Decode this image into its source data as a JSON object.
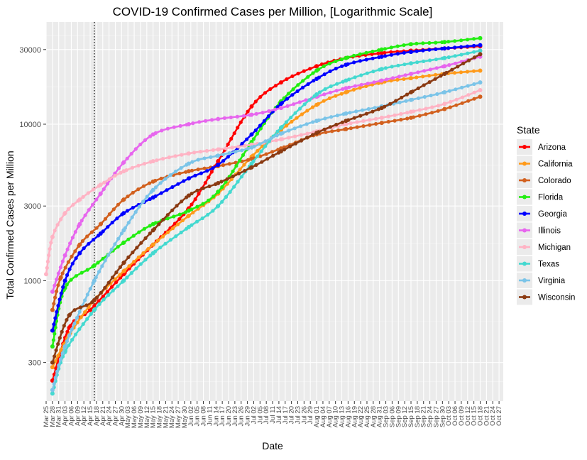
{
  "chart_data": {
    "type": "line",
    "title": "COVID-19 Confirmed Cases per Million, [Logarithmic Scale]",
    "xlabel": "Date",
    "ylabel": "Total Confirmed Cases per Million",
    "y_scale": "log10",
    "ylim": [
      170,
      45000
    ],
    "y_ticks": [
      300,
      1000,
      3000,
      10000,
      30000
    ],
    "y_tick_labels": [
      "300",
      "1000",
      "3000",
      "10000",
      "30000"
    ],
    "x_range": [
      "2020-03-25",
      "2020-10-29"
    ],
    "x_tick_labels": [
      "Mar 25",
      "Mar 28",
      "Mar 31",
      "Apr 03",
      "Apr 06",
      "Apr 09",
      "Apr 12",
      "Apr 15",
      "Apr 18",
      "Apr 21",
      "Apr 24",
      "Apr 27",
      "Apr 30",
      "May 03",
      "May 06",
      "May 09",
      "May 12",
      "May 15",
      "May 18",
      "May 21",
      "May 24",
      "May 27",
      "May 30",
      "Jun 02",
      "Jun 05",
      "Jun 08",
      "Jun 11",
      "Jun 14",
      "Jun 17",
      "Jun 20",
      "Jun 23",
      "Jun 26",
      "Jun 29",
      "Jul 02",
      "Jul 05",
      "Jul 08",
      "Jul 11",
      "Jul 14",
      "Jul 17",
      "Jul 20",
      "Jul 23",
      "Jul 26",
      "Jul 29",
      "Aug 01",
      "Aug 04",
      "Aug 07",
      "Aug 10",
      "Aug 13",
      "Aug 16",
      "Aug 19",
      "Aug 22",
      "Aug 25",
      "Aug 28",
      "Aug 31",
      "Sep 03",
      "Sep 06",
      "Sep 09",
      "Sep 12",
      "Sep 15",
      "Sep 18",
      "Sep 21",
      "Sep 24",
      "Sep 27",
      "Sep 30",
      "Oct 03",
      "Oct 06",
      "Oct 09",
      "Oct 12",
      "Oct 15",
      "Oct 18",
      "Oct 21",
      "Oct 24",
      "Oct 27"
    ],
    "vline_date": "2020-04-17",
    "legend_title": "State",
    "legend_position": "right",
    "grid": true,
    "series": [
      {
        "name": "Arizona",
        "color": "#ff0000",
        "points": [
          [
            "2020-03-28",
            230
          ],
          [
            "2020-04-05",
            500
          ],
          [
            "2020-04-15",
            650
          ],
          [
            "2020-05-01",
            1100
          ],
          [
            "2020-05-15",
            1700
          ],
          [
            "2020-06-01",
            2900
          ],
          [
            "2020-06-15",
            5800
          ],
          [
            "2020-07-01",
            13000
          ],
          [
            "2020-07-15",
            18500
          ],
          [
            "2020-08-01",
            23500
          ],
          [
            "2020-08-15",
            26500
          ],
          [
            "2020-09-01",
            28500
          ],
          [
            "2020-09-15",
            29500
          ],
          [
            "2020-10-01",
            30500
          ],
          [
            "2020-10-18",
            31500
          ]
        ]
      },
      {
        "name": "California",
        "color": "#ff9a1a",
        "points": [
          [
            "2020-03-28",
            280
          ],
          [
            "2020-04-05",
            450
          ],
          [
            "2020-04-17",
            750
          ],
          [
            "2020-05-01",
            1150
          ],
          [
            "2020-05-15",
            1700
          ],
          [
            "2020-06-01",
            2600
          ],
          [
            "2020-06-15",
            3600
          ],
          [
            "2020-07-01",
            6200
          ],
          [
            "2020-07-15",
            9200
          ],
          [
            "2020-08-01",
            13300
          ],
          [
            "2020-08-15",
            16000
          ],
          [
            "2020-09-01",
            18500
          ],
          [
            "2020-09-15",
            19700
          ],
          [
            "2020-10-01",
            21000
          ],
          [
            "2020-10-18",
            22000
          ]
        ]
      },
      {
        "name": "Colorado",
        "color": "#d2601e",
        "points": [
          [
            "2020-03-28",
            650
          ],
          [
            "2020-04-01",
            1050
          ],
          [
            "2020-04-10",
            1700
          ],
          [
            "2020-04-20",
            2300
          ],
          [
            "2020-05-01",
            3300
          ],
          [
            "2020-05-15",
            4300
          ],
          [
            "2020-06-01",
            5000
          ],
          [
            "2020-06-15",
            5400
          ],
          [
            "2020-07-01",
            6000
          ],
          [
            "2020-07-15",
            7000
          ],
          [
            "2020-08-01",
            8600
          ],
          [
            "2020-08-15",
            9300
          ],
          [
            "2020-09-01",
            10200
          ],
          [
            "2020-09-15",
            11000
          ],
          [
            "2020-10-01",
            12500
          ],
          [
            "2020-10-18",
            15000
          ]
        ]
      },
      {
        "name": "Florida",
        "color": "#22ee11",
        "points": [
          [
            "2020-03-28",
            380
          ],
          [
            "2020-04-03",
            900
          ],
          [
            "2020-04-17",
            1250
          ],
          [
            "2020-05-01",
            1750
          ],
          [
            "2020-05-15",
            2300
          ],
          [
            "2020-06-01",
            2800
          ],
          [
            "2020-06-15",
            3700
          ],
          [
            "2020-07-01",
            7700
          ],
          [
            "2020-07-15",
            14000
          ],
          [
            "2020-08-01",
            22000
          ],
          [
            "2020-08-15",
            26500
          ],
          [
            "2020-09-01",
            30000
          ],
          [
            "2020-09-15",
            32500
          ],
          [
            "2020-10-01",
            33500
          ],
          [
            "2020-10-18",
            35500
          ]
        ]
      },
      {
        "name": "Georgia",
        "color": "#0000ff",
        "points": [
          [
            "2020-03-28",
            480
          ],
          [
            "2020-04-03",
            1000
          ],
          [
            "2020-04-10",
            1500
          ],
          [
            "2020-04-20",
            2000
          ],
          [
            "2020-05-01",
            2700
          ],
          [
            "2020-05-15",
            3400
          ],
          [
            "2020-06-01",
            4500
          ],
          [
            "2020-06-15",
            5500
          ],
          [
            "2020-07-01",
            8600
          ],
          [
            "2020-07-15",
            13500
          ],
          [
            "2020-08-01",
            19500
          ],
          [
            "2020-08-15",
            24000
          ],
          [
            "2020-09-01",
            27000
          ],
          [
            "2020-09-15",
            29000
          ],
          [
            "2020-10-01",
            30500
          ],
          [
            "2020-10-18",
            32000
          ]
        ]
      },
      {
        "name": "Illinois",
        "color": "#e766ee",
        "points": [
          [
            "2020-03-28",
            850
          ],
          [
            "2020-04-03",
            1450
          ],
          [
            "2020-04-10",
            2300
          ],
          [
            "2020-04-20",
            3600
          ],
          [
            "2020-05-01",
            5700
          ],
          [
            "2020-05-15",
            8600
          ],
          [
            "2020-06-01",
            10000
          ],
          [
            "2020-06-15",
            10800
          ],
          [
            "2020-07-01",
            11500
          ],
          [
            "2020-07-15",
            12700
          ],
          [
            "2020-08-01",
            15000
          ],
          [
            "2020-08-15",
            17000
          ],
          [
            "2020-09-01",
            19000
          ],
          [
            "2020-09-15",
            21000
          ],
          [
            "2020-10-01",
            23500
          ],
          [
            "2020-10-18",
            27000
          ]
        ]
      },
      {
        "name": "Michigan",
        "color": "#ffb3c4",
        "points": [
          [
            "2020-03-25",
            1100
          ],
          [
            "2020-03-28",
            1900
          ],
          [
            "2020-04-03",
            2700
          ],
          [
            "2020-04-10",
            3300
          ],
          [
            "2020-04-20",
            4100
          ],
          [
            "2020-05-01",
            5000
          ],
          [
            "2020-05-15",
            5800
          ],
          [
            "2020-06-01",
            6500
          ],
          [
            "2020-06-15",
            6900
          ],
          [
            "2020-07-01",
            7400
          ],
          [
            "2020-07-15",
            8000
          ],
          [
            "2020-08-01",
            9000
          ],
          [
            "2020-08-15",
            10000
          ],
          [
            "2020-09-01",
            11000
          ],
          [
            "2020-09-15",
            12000
          ],
          [
            "2020-10-01",
            13500
          ],
          [
            "2020-10-18",
            16500
          ]
        ]
      },
      {
        "name": "Texas",
        "color": "#44d9d0",
        "points": [
          [
            "2020-03-28",
            190
          ],
          [
            "2020-04-03",
            350
          ],
          [
            "2020-04-17",
            650
          ],
          [
            "2020-05-01",
            1000
          ],
          [
            "2020-05-15",
            1500
          ],
          [
            "2020-06-01",
            2200
          ],
          [
            "2020-06-15",
            3000
          ],
          [
            "2020-07-01",
            5600
          ],
          [
            "2020-07-15",
            9500
          ],
          [
            "2020-08-01",
            15500
          ],
          [
            "2020-08-15",
            19000
          ],
          [
            "2020-09-01",
            22500
          ],
          [
            "2020-09-15",
            24500
          ],
          [
            "2020-10-01",
            26500
          ],
          [
            "2020-10-18",
            29500
          ]
        ]
      },
      {
        "name": "Virginia",
        "color": "#7bc4e8",
        "points": [
          [
            "2020-03-28",
            200
          ],
          [
            "2020-04-03",
            380
          ],
          [
            "2020-04-17",
            1000
          ],
          [
            "2020-05-01",
            2100
          ],
          [
            "2020-05-15",
            3800
          ],
          [
            "2020-06-01",
            5600
          ],
          [
            "2020-06-15",
            6300
          ],
          [
            "2020-07-01",
            7100
          ],
          [
            "2020-07-15",
            8700
          ],
          [
            "2020-08-01",
            10500
          ],
          [
            "2020-08-15",
            11700
          ],
          [
            "2020-09-01",
            13000
          ],
          [
            "2020-09-15",
            14300
          ],
          [
            "2020-10-01",
            16000
          ],
          [
            "2020-10-18",
            18500
          ]
        ]
      },
      {
        "name": "Wisconsin",
        "color": "#8a3a12",
        "points": [
          [
            "2020-03-28",
            300
          ],
          [
            "2020-04-05",
            600
          ],
          [
            "2020-04-17",
            750
          ],
          [
            "2020-05-01",
            1300
          ],
          [
            "2020-05-15",
            2100
          ],
          [
            "2020-06-01",
            3500
          ],
          [
            "2020-06-15",
            4200
          ],
          [
            "2020-07-01",
            5300
          ],
          [
            "2020-07-15",
            6700
          ],
          [
            "2020-08-01",
            8800
          ],
          [
            "2020-08-15",
            10500
          ],
          [
            "2020-09-01",
            12700
          ],
          [
            "2020-09-15",
            16000
          ],
          [
            "2020-10-01",
            21000
          ],
          [
            "2020-10-18",
            28000
          ]
        ]
      }
    ]
  }
}
